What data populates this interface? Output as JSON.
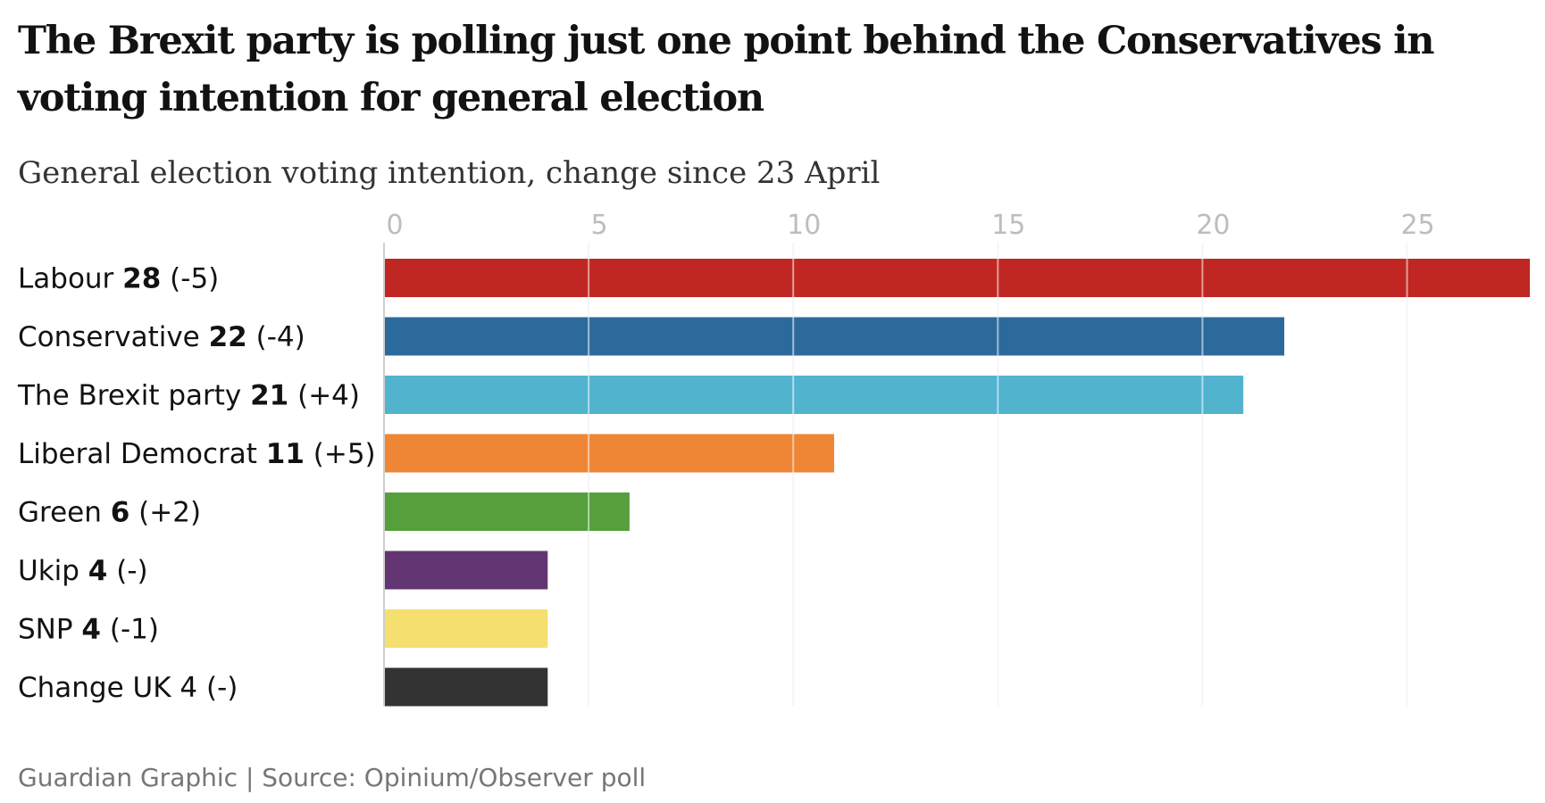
{
  "chart_data": {
    "type": "bar",
    "orientation": "horizontal",
    "title": "The Brexit party is polling just one point behind the Conservatives in voting intention for general election",
    "subtitle": "General election voting intention, change since 23 April",
    "source": "Guardian Graphic | Source: Opinium/Observer poll",
    "xlim": [
      0,
      28
    ],
    "ticks": [
      "0",
      "5",
      "10",
      "15",
      "20",
      "25"
    ],
    "tick_values": [
      0,
      5,
      10,
      15,
      20,
      25
    ],
    "grid": true,
    "bars": [
      {
        "name": "Labour",
        "value": 28,
        "value_label": "28",
        "change": "(-5)",
        "color": "#c02722",
        "value_bold": true
      },
      {
        "name": "Conservative",
        "value": 22,
        "value_label": "22",
        "change": "(-4)",
        "color": "#2d6a9c",
        "value_bold": true
      },
      {
        "name": "The Brexit party",
        "value": 21,
        "value_label": "21",
        "change": "(+4)",
        "color": "#52b3cf",
        "value_bold": true
      },
      {
        "name": "Liberal Democrat",
        "value": 11,
        "value_label": "11",
        "change": "(+5)",
        "color": "#ef8636",
        "value_bold": true
      },
      {
        "name": "Green",
        "value": 6,
        "value_label": "6",
        "change": "(+2)",
        "color": "#55a03d",
        "value_bold": true
      },
      {
        "name": "Ukip",
        "value": 4,
        "value_label": "4",
        "change": "(-)",
        "color": "#643573",
        "value_bold": true
      },
      {
        "name": "SNP",
        "value": 4,
        "value_label": "4",
        "change": "(-1)",
        "color": "#f5df6f",
        "value_bold": true
      },
      {
        "name": "Change UK",
        "value": 4,
        "value_label": "4",
        "change": "(-)",
        "color": "#333333",
        "value_bold": false
      }
    ]
  }
}
